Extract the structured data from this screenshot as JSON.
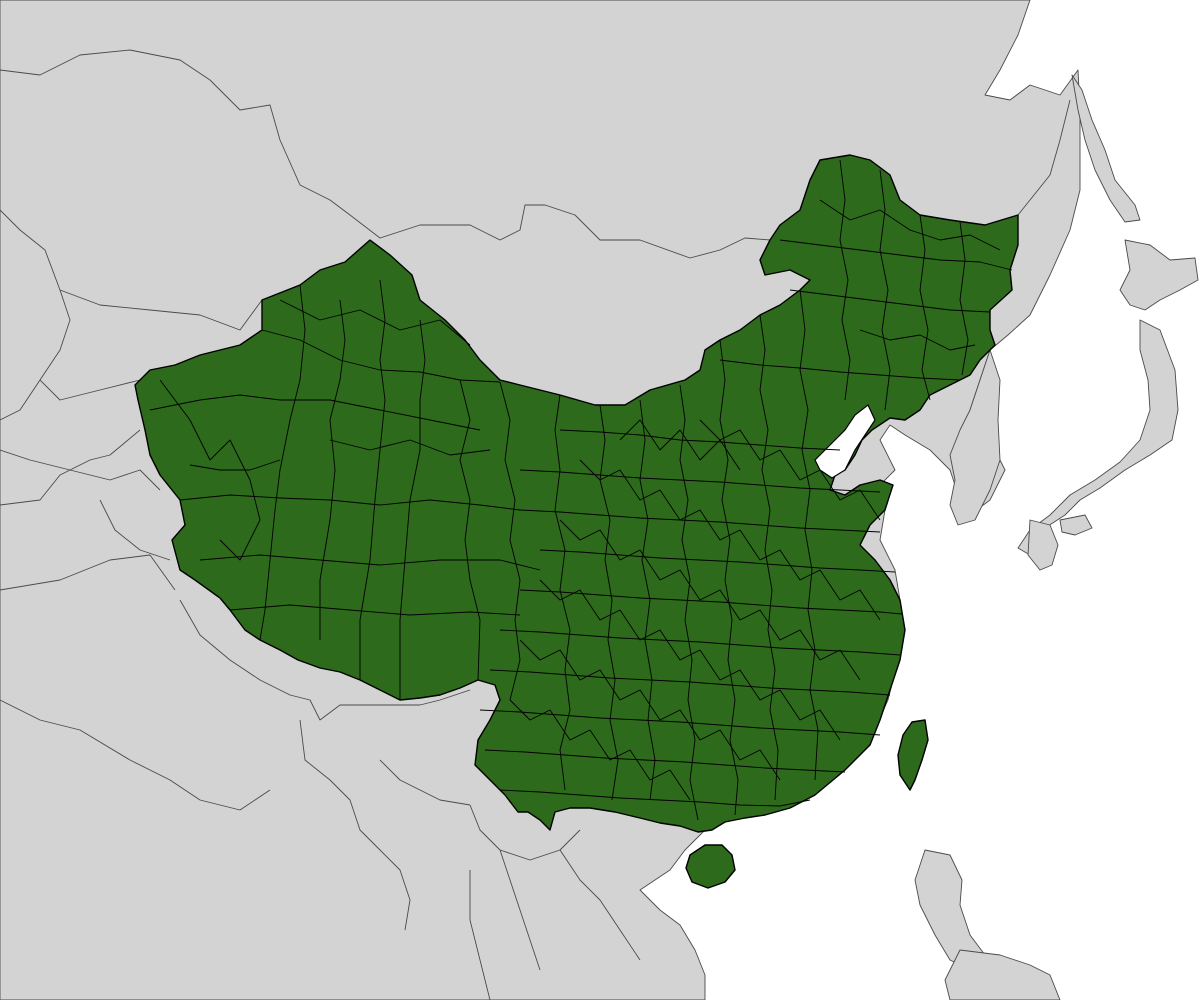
{
  "map": {
    "highlight_color": "#2d6a1b",
    "base_land_color": "#d3d3d3",
    "water_color": "#ffffff",
    "boundary_color": "#000000"
  }
}
